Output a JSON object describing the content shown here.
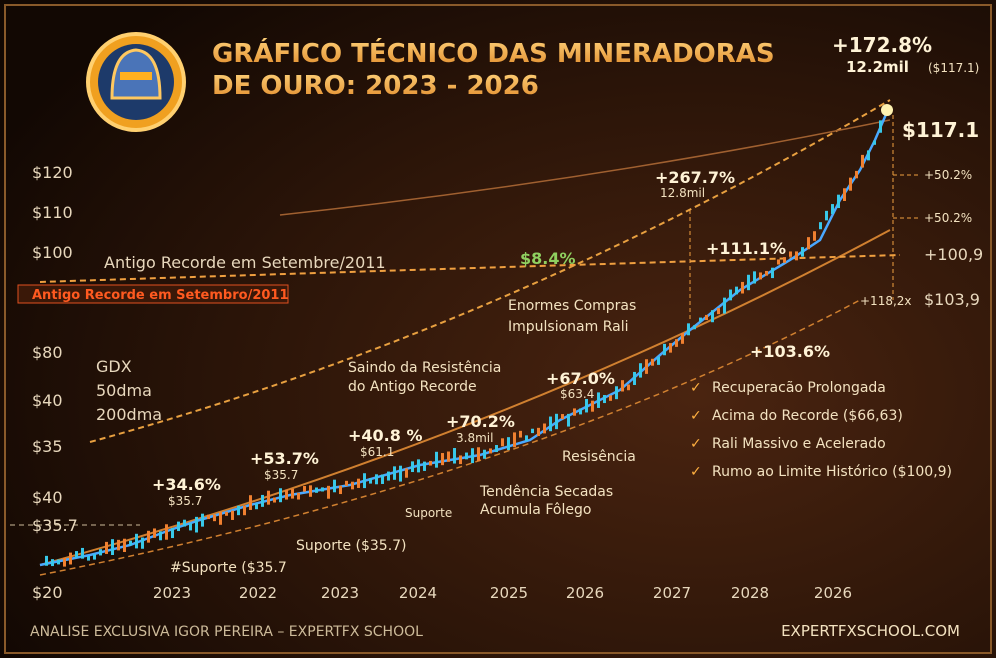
{
  "header": {
    "title_line1": "GRÁFICO TÉCNICO DAS MINERADORAS",
    "title_line2": "DE OURO: 2023 - 2026"
  },
  "y_axis_labels": [
    "$120",
    "$110",
    "$100",
    "$80",
    "$40",
    "$35",
    "$40",
    "$35.7",
    "$20"
  ],
  "x_axis_labels": [
    "2023",
    "2022",
    "2023",
    "2024",
    "2025",
    "2026",
    "2027",
    "2028",
    "2026"
  ],
  "legend": [
    "GDX",
    "50dma",
    "200dma"
  ],
  "annotations": [
    "+172.8%",
    "12.2mil",
    "($117.1)",
    "$117.1",
    "+267.7%",
    "12.8mil",
    "+50.2%",
    "+50.2%",
    "$8.4%",
    "+111.1%",
    "+100,9",
    "Antigo Recorde em Setembre/2011",
    "Antigo Recorde em Setembro/2011",
    "+118,2x",
    "$103,9",
    "Enormes Compras",
    "Impulsionam Rali",
    "+103.6%",
    "Saindo da Resistência",
    "do Antigo Recorde",
    "+67.0%",
    "$63.4",
    "+70.2%",
    "3.8mil",
    "+40.8 %",
    "$61.1",
    "+53.7%",
    "$35.7",
    "+34.6%",
    "$35.7",
    "Resisência",
    "Tendência Secadas",
    "Acumula Fôlego",
    "Suporte",
    "Suporte ($35.7)",
    "#Suporte ($35.7"
  ],
  "checklist": [
    "Recuperacão Prolongada",
    "Acima do Recorde ($66,63)",
    "Rali Massivo e Acelerado",
    "Rumo ao Limite Histórico ($100,9)"
  ],
  "footer": {
    "left": "ANALISE EXCLUSIVA IGOR PEREIRA – EXPERTFX SCHOOL",
    "right": "EXPERTFXSCHOOL.COM"
  }
}
